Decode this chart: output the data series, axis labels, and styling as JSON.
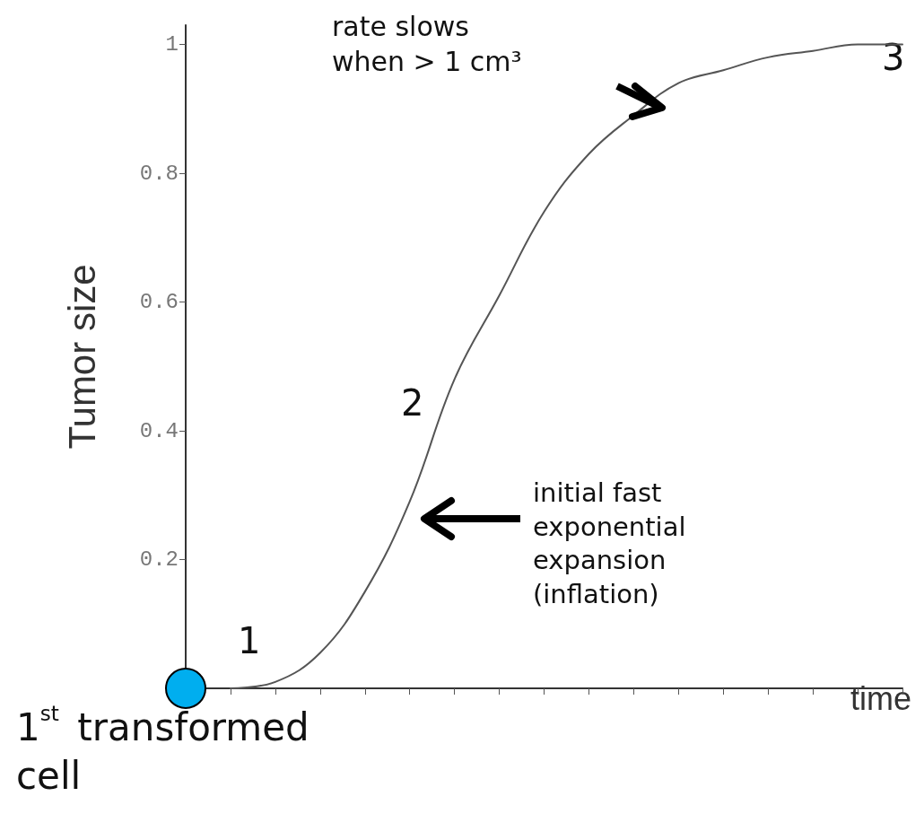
{
  "chart_data": {
    "type": "line",
    "xlabel": "time",
    "ylabel": "Tumor size",
    "categories": [
      null,
      null,
      null,
      null,
      null,
      null,
      null,
      null,
      null,
      null,
      null,
      null,
      null,
      null,
      null,
      null,
      null
    ],
    "series": [
      {
        "color": "#555555",
        "values": [
          null,
          0,
          0.01,
          0.055,
          0.15,
          0.29,
          0.48,
          0.61,
          0.74,
          0.83,
          0.89,
          0.94,
          0.96,
          0.98,
          0.99,
          1.0,
          1.0
        ]
      }
    ],
    "ylim": [
      0,
      1.03
    ],
    "yticks": [
      0.2,
      0.4,
      0.6,
      0.8,
      1
    ],
    "tick_labels": "y",
    "grid": false,
    "marker": "none",
    "line_style": "solid",
    "annotations": [
      "rate slows when > 1 cm³",
      "initial fast exponential expansion (inflation)",
      "1",
      "2",
      "3",
      "1$^{st}$ transformed cell"
    ]
  }
}
